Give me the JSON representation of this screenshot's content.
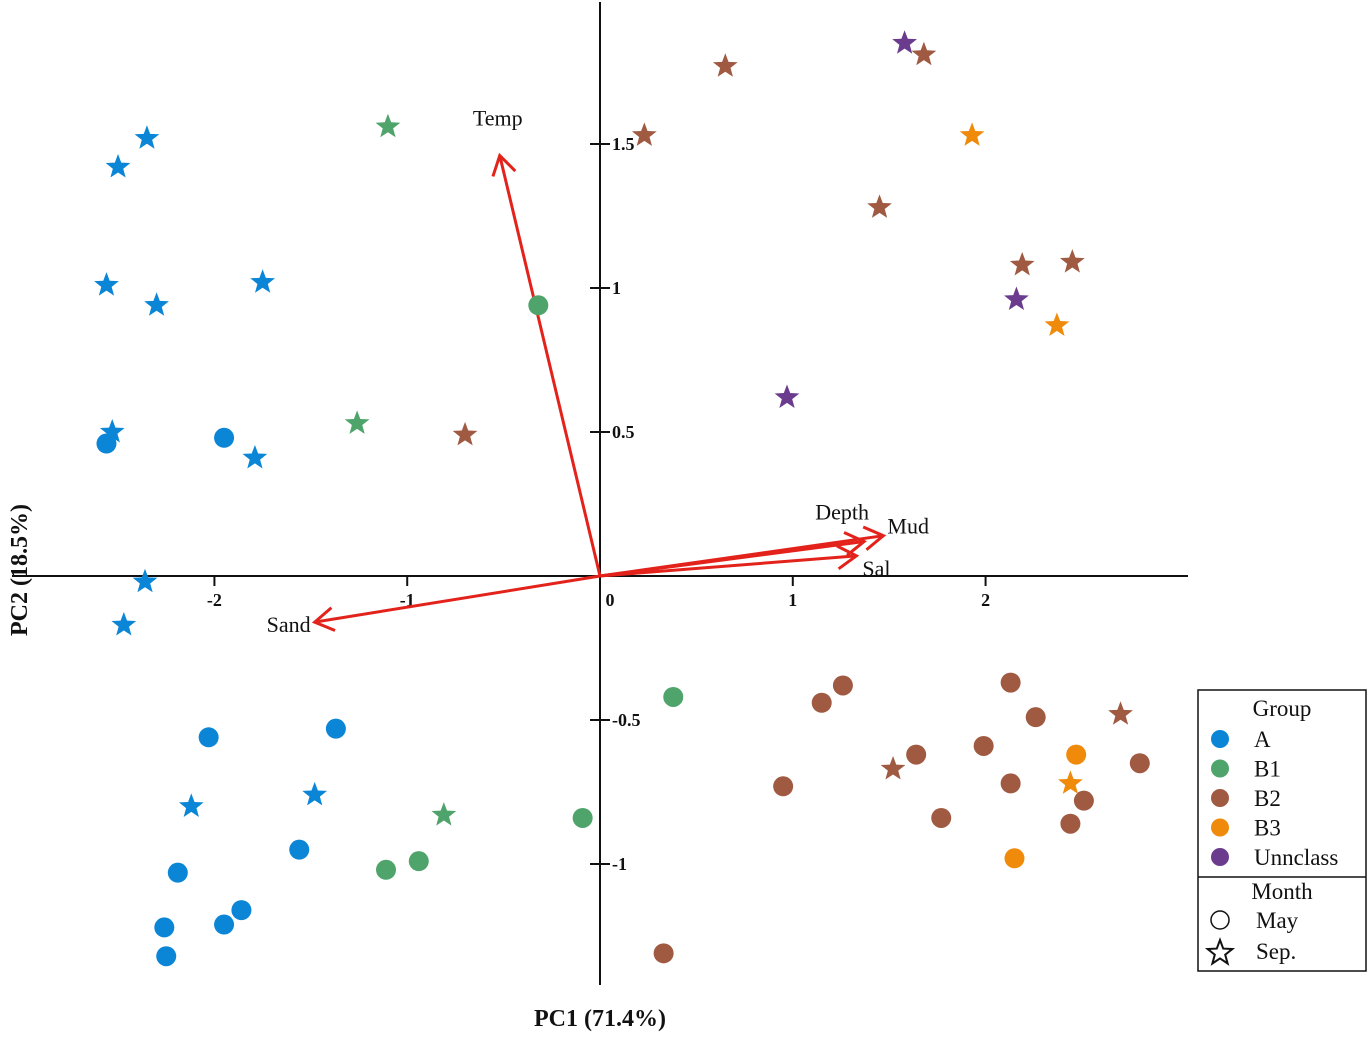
{
  "chart_data": {
    "type": "scatter",
    "xlabel": "PC1 (71.4%)",
    "ylabel": "PC2 (18.5%)",
    "xlim": [
      -3.05,
      3.05
    ],
    "ylim": [
      -1.42,
      2.0
    ],
    "x_ticks": [
      {
        "value": -2,
        "label": "-2"
      },
      {
        "value": -1,
        "label": "-1"
      },
      {
        "value": 0,
        "label": "0"
      },
      {
        "value": 1,
        "label": "1"
      },
      {
        "value": 2,
        "label": "2"
      }
    ],
    "y_ticks": [
      {
        "value": 1.5,
        "label": "1.5"
      },
      {
        "value": 1,
        "label": "1"
      },
      {
        "value": 0.5,
        "label": "0.5"
      },
      {
        "value": -0.5,
        "label": "-0.5"
      },
      {
        "value": -1,
        "label": "-1"
      }
    ],
    "groups": [
      {
        "key": "A",
        "label": "A",
        "color": "#0b86d6"
      },
      {
        "key": "B1",
        "label": "B1",
        "color": "#4fa46b"
      },
      {
        "key": "B2",
        "label": "B2",
        "color": "#a05a42"
      },
      {
        "key": "B3",
        "label": "B3",
        "color": "#f08a0a"
      },
      {
        "key": "Unclass",
        "label": "Unnclass",
        "color": "#6b3c8e"
      }
    ],
    "months": [
      {
        "key": "May",
        "label": "May",
        "marker": "circle"
      },
      {
        "key": "Sep",
        "label": "Sep.",
        "marker": "star"
      }
    ],
    "legend": {
      "group_title": "Group",
      "month_title": "Month",
      "placement": "right"
    },
    "vectors": [
      {
        "label": "Temp",
        "x": -0.52,
        "y": 1.46
      },
      {
        "label": "Sand",
        "x": -1.48,
        "y": -0.16
      },
      {
        "label": "Depth",
        "x": 1.37,
        "y": 0.12
      },
      {
        "label": "Mud",
        "x": 1.47,
        "y": 0.14
      },
      {
        "label": "Sal",
        "x": 1.33,
        "y": 0.07
      }
    ],
    "points": [
      {
        "group": "A",
        "month": "Sep",
        "x": -2.35,
        "y": 1.52
      },
      {
        "group": "A",
        "month": "Sep",
        "x": -2.5,
        "y": 1.42
      },
      {
        "group": "A",
        "month": "Sep",
        "x": -2.56,
        "y": 1.01
      },
      {
        "group": "A",
        "month": "Sep",
        "x": -2.3,
        "y": 0.94
      },
      {
        "group": "A",
        "month": "Sep",
        "x": -1.75,
        "y": 1.02
      },
      {
        "group": "A",
        "month": "Sep",
        "x": -2.53,
        "y": 0.5
      },
      {
        "group": "A",
        "month": "Sep",
        "x": -1.79,
        "y": 0.41
      },
      {
        "group": "A",
        "month": "Sep",
        "x": -2.36,
        "y": -0.02
      },
      {
        "group": "A",
        "month": "Sep",
        "x": -2.47,
        "y": -0.17
      },
      {
        "group": "A",
        "month": "Sep",
        "x": -2.12,
        "y": -0.8
      },
      {
        "group": "A",
        "month": "Sep",
        "x": -1.48,
        "y": -0.76
      },
      {
        "group": "A",
        "month": "May",
        "x": -2.56,
        "y": 0.46
      },
      {
        "group": "A",
        "month": "May",
        "x": -1.95,
        "y": 0.48
      },
      {
        "group": "A",
        "month": "May",
        "x": -2.03,
        "y": -0.56
      },
      {
        "group": "A",
        "month": "May",
        "x": -1.37,
        "y": -0.53
      },
      {
        "group": "A",
        "month": "May",
        "x": -1.56,
        "y": -0.95
      },
      {
        "group": "A",
        "month": "May",
        "x": -2.19,
        "y": -1.03
      },
      {
        "group": "A",
        "month": "May",
        "x": -1.86,
        "y": -1.16
      },
      {
        "group": "A",
        "month": "May",
        "x": -1.95,
        "y": -1.21
      },
      {
        "group": "A",
        "month": "May",
        "x": -2.26,
        "y": -1.22
      },
      {
        "group": "A",
        "month": "May",
        "x": -2.25,
        "y": -1.32
      },
      {
        "group": "B1",
        "month": "Sep",
        "x": -1.1,
        "y": 1.56
      },
      {
        "group": "B1",
        "month": "Sep",
        "x": -1.26,
        "y": 0.53
      },
      {
        "group": "B1",
        "month": "Sep",
        "x": -0.81,
        "y": -0.83
      },
      {
        "group": "B1",
        "month": "May",
        "x": -0.32,
        "y": 0.94
      },
      {
        "group": "B1",
        "month": "May",
        "x": 0.38,
        "y": -0.42
      },
      {
        "group": "B1",
        "month": "May",
        "x": -0.09,
        "y": -0.84
      },
      {
        "group": "B1",
        "month": "May",
        "x": -0.94,
        "y": -0.99
      },
      {
        "group": "B1",
        "month": "May",
        "x": -1.11,
        "y": -1.02
      },
      {
        "group": "B2",
        "month": "Sep",
        "x": 0.65,
        "y": 1.77
      },
      {
        "group": "B2",
        "month": "Sep",
        "x": 1.68,
        "y": 1.81
      },
      {
        "group": "B2",
        "month": "Sep",
        "x": 0.23,
        "y": 1.53
      },
      {
        "group": "B2",
        "month": "Sep",
        "x": 1.45,
        "y": 1.28
      },
      {
        "group": "B2",
        "month": "Sep",
        "x": 2.19,
        "y": 1.08
      },
      {
        "group": "B2",
        "month": "Sep",
        "x": 2.45,
        "y": 1.09
      },
      {
        "group": "B2",
        "month": "Sep",
        "x": -0.7,
        "y": 0.49
      },
      {
        "group": "B2",
        "month": "Sep",
        "x": 2.7,
        "y": -0.48
      },
      {
        "group": "B2",
        "month": "Sep",
        "x": 1.52,
        "y": -0.67
      },
      {
        "group": "B2",
        "month": "May",
        "x": 1.26,
        "y": -0.38
      },
      {
        "group": "B2",
        "month": "May",
        "x": 1.15,
        "y": -0.44
      },
      {
        "group": "B2",
        "month": "May",
        "x": 2.13,
        "y": -0.37
      },
      {
        "group": "B2",
        "month": "May",
        "x": 2.26,
        "y": -0.49
      },
      {
        "group": "B2",
        "month": "May",
        "x": 1.64,
        "y": -0.62
      },
      {
        "group": "B2",
        "month": "May",
        "x": 1.99,
        "y": -0.59
      },
      {
        "group": "B2",
        "month": "May",
        "x": 0.95,
        "y": -0.73
      },
      {
        "group": "B2",
        "month": "May",
        "x": 2.13,
        "y": -0.72
      },
      {
        "group": "B2",
        "month": "May",
        "x": 2.8,
        "y": -0.65
      },
      {
        "group": "B2",
        "month": "May",
        "x": 2.51,
        "y": -0.78
      },
      {
        "group": "B2",
        "month": "May",
        "x": 1.77,
        "y": -0.84
      },
      {
        "group": "B2",
        "month": "May",
        "x": 2.44,
        "y": -0.86
      },
      {
        "group": "B2",
        "month": "May",
        "x": 0.33,
        "y": -1.31
      },
      {
        "group": "B3",
        "month": "Sep",
        "x": 1.93,
        "y": 1.53
      },
      {
        "group": "B3",
        "month": "Sep",
        "x": 2.37,
        "y": 0.87
      },
      {
        "group": "B3",
        "month": "Sep",
        "x": 2.44,
        "y": -0.72
      },
      {
        "group": "B3",
        "month": "May",
        "x": 2.47,
        "y": -0.62
      },
      {
        "group": "B3",
        "month": "May",
        "x": 2.15,
        "y": -0.98
      },
      {
        "group": "Unclass",
        "month": "Sep",
        "x": 1.58,
        "y": 1.85
      },
      {
        "group": "Unclass",
        "month": "Sep",
        "x": 2.16,
        "y": 0.96
      },
      {
        "group": "Unclass",
        "month": "Sep",
        "x": 0.97,
        "y": 0.62
      }
    ]
  }
}
